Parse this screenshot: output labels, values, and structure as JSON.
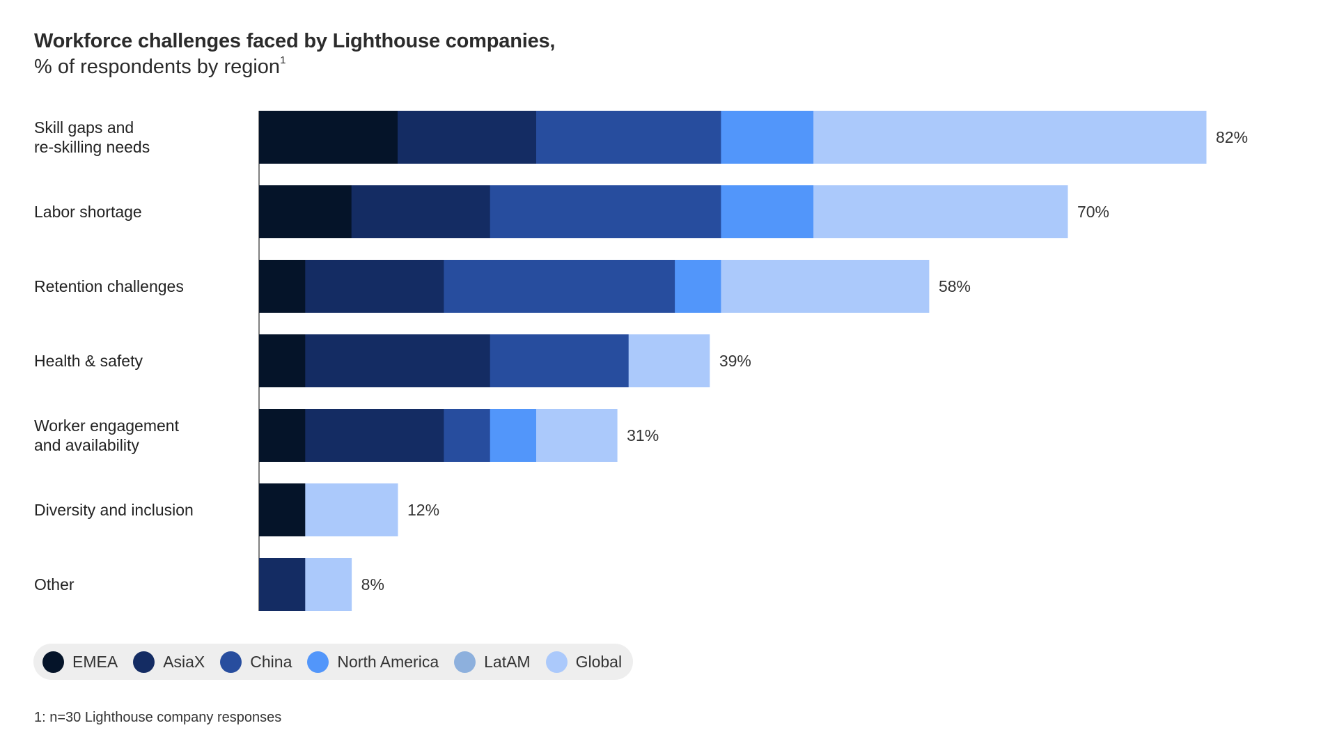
{
  "title": "Workforce challenges faced by Lighthouse companies,",
  "subtitle": "% of respondents by region",
  "subtitle_sup": "1",
  "footnote": "1: n=30 Lighthouse company responses",
  "colors": {
    "EMEA": "#051429",
    "AsiaX": "#142c63",
    "China": "#274d9e",
    "North America": "#5296fa",
    "LatAM": "#8db0dd",
    "Global": "#abc9fb",
    "axis": "#555555"
  },
  "chart_data": {
    "type": "bar",
    "orientation": "horizontal",
    "stacked": true,
    "title": "Workforce challenges faced by Lighthouse companies,",
    "subtitle": "% of respondents by region",
    "xlabel": "",
    "ylabel": "",
    "xlim": [
      0,
      82
    ],
    "grid": false,
    "legend_position": "bottom-left",
    "categories": [
      "Skill gaps and\nre-skilling needs",
      "Labor shortage",
      "Retention challenges",
      "Health & safety",
      "Worker engagement\nand availability",
      "Diversity and inclusion",
      "Other"
    ],
    "totals": [
      82,
      70,
      58,
      39,
      31,
      12,
      8
    ],
    "total_labels": [
      "82%",
      "70%",
      "58%",
      "39%",
      "31%",
      "12%",
      "8%"
    ],
    "series": [
      {
        "name": "EMEA",
        "values": [
          12,
          8,
          4,
          4,
          4,
          4,
          0
        ]
      },
      {
        "name": "AsiaX",
        "values": [
          12,
          12,
          12,
          16,
          12,
          0,
          4
        ]
      },
      {
        "name": "China",
        "values": [
          16,
          20,
          20,
          12,
          4,
          0,
          0
        ]
      },
      {
        "name": "North America",
        "values": [
          8,
          8,
          4,
          0,
          4,
          0,
          0
        ]
      },
      {
        "name": "LatAM",
        "values": [
          0,
          0,
          0,
          0,
          0,
          0,
          0
        ]
      },
      {
        "name": "Global",
        "values": [
          34,
          22,
          18,
          7,
          7,
          8,
          4
        ]
      }
    ]
  }
}
